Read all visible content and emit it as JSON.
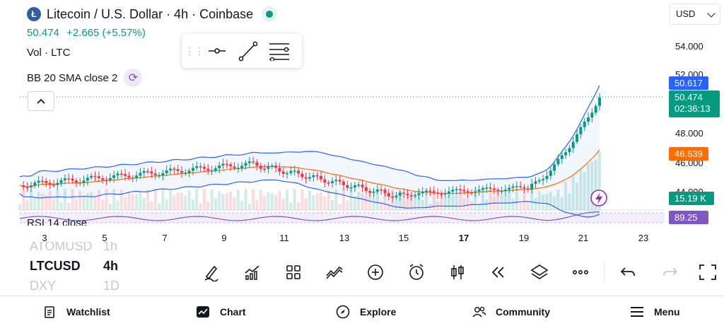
{
  "header": {
    "coin_logo_text": "Ł",
    "title": "Litecoin / U.S. Dollar · 4h · Coinbase",
    "price": "50.474",
    "change": "+2.665 (+5.57%)"
  },
  "indicators": {
    "volume_label": "Vol · LTC",
    "bb_label": "BB 20 SMA close 2",
    "rsi_label": "RSI 14 close"
  },
  "currency": {
    "selected": "USD"
  },
  "price_axis": {
    "ticks": [
      "54.000",
      "52.000",
      "48.000",
      "46.000",
      "44.000"
    ],
    "tags": {
      "bb_upper": "50.617",
      "last_price": "50.474",
      "countdown": "02:36:13",
      "bb_basis": "46.639",
      "volume": "15.19 K",
      "rsi": "89.25"
    }
  },
  "time_axis": [
    "3",
    "5",
    "7",
    "9",
    "11",
    "13",
    "15",
    "17",
    "19",
    "21",
    "23"
  ],
  "symbols": [
    {
      "name": "ATOMUSD",
      "tf": "1h",
      "state": "faded"
    },
    {
      "name": "LTCUSD",
      "tf": "4h",
      "state": "active"
    },
    {
      "name": "DXY",
      "tf": "1D",
      "state": "faded"
    }
  ],
  "tools": [
    "draw-icon",
    "indicators-icon",
    "templates-icon",
    "compare-icon",
    "add-icon",
    "alert-icon",
    "chart-type-icon",
    "replay-icon",
    "layers-icon",
    "more-icon"
  ],
  "nav": {
    "watchlist": "Watchlist",
    "chart": "Chart",
    "explore": "Explore",
    "community": "Community",
    "menu": "Menu"
  },
  "colors": {
    "up": "#089981",
    "down": "#f23645",
    "bb_band": "#2962ff",
    "bb_basis": "#ff6d00",
    "rsi": "#7e57c2",
    "bb_upper_tag": "#2962ff",
    "last_price_tag": "#089981",
    "bb_basis_tag": "#ff6d00",
    "volume_tag": "#089981",
    "rsi_tag": "#7e57c2"
  }
}
